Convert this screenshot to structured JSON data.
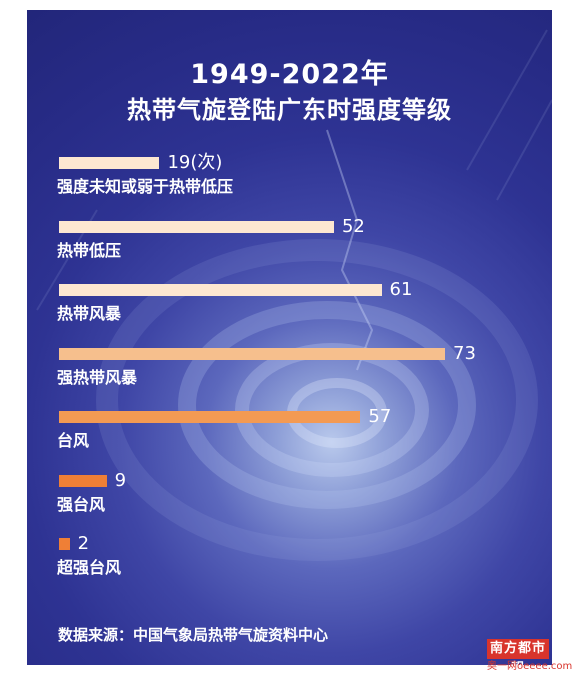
{
  "title_line1": "1949-2022年",
  "title_line2": "热带气旋登陆广东时强度等级",
  "source": "数据来源：中国气象局热带气旋资料中心",
  "watermark": {
    "logo": "南方都市報",
    "sub": "奥一网oeeee.com"
  },
  "colors": {
    "background_start": "#3f46a6",
    "background_end": "#22267a",
    "bar_light": "#fde7d1",
    "bar_mid": "#f6bf8d",
    "bar_orange": "#f39a53",
    "bar_dark": "#ef7f36",
    "text": "#ffffff"
  },
  "chart_data": {
    "type": "bar",
    "orientation": "horizontal",
    "categories": [
      "强度未知或弱于热带低压",
      "热带低压",
      "热带风暴",
      "强热带风暴",
      "台风",
      "强台风",
      "超强台风"
    ],
    "values": [
      19,
      52,
      61,
      73,
      57,
      9,
      2
    ],
    "value_labels": [
      "19(次)",
      "52",
      "61",
      "73",
      "57",
      "9",
      "2"
    ],
    "title": "1949-2022年 热带气旋登陆广东时强度等级",
    "xlabel": "",
    "ylabel": "",
    "xlim": [
      0,
      73
    ],
    "grid": false,
    "legend": "none"
  }
}
